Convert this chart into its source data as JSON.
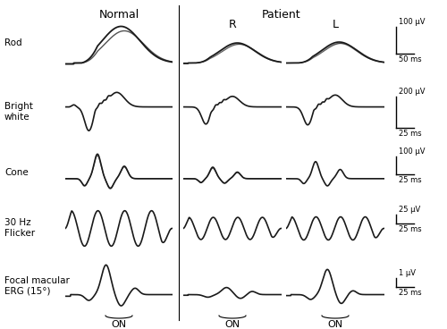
{
  "title_normal": "Normal",
  "title_patient": "Patient",
  "label_R": "R",
  "label_L": "L",
  "row_labels": [
    "Rod",
    "Bright\nwhite",
    "Cone",
    "30 Hz\nFlicker",
    "Focal macular\nERG (15°)"
  ],
  "scale_labels_amp": [
    "100 μV",
    "200 μV",
    "100 μV",
    "25 μV",
    "1 μV"
  ],
  "scale_labels_time": [
    "50 ms",
    "25 ms",
    "25 ms",
    "25 ms",
    "25 ms"
  ],
  "on_label": "ON",
  "line_color": "#1a1a1a",
  "line_color2": "#555555",
  "figsize": [
    5.0,
    3.68
  ],
  "dpi": 100
}
